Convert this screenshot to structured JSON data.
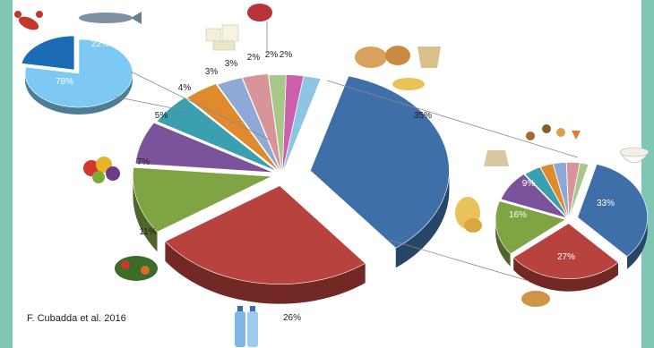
{
  "source_text": "F. Cubadda et al. 2016",
  "colors": {
    "frame": "#7fc6b5",
    "cereals": "#3f6fa8",
    "water": "#b8423d",
    "vegetables": "#7ea443",
    "fruit": "#7b539a",
    "teal": "#3b9fb0",
    "orange": "#e08a2e",
    "lightblue": "#8ea9d6",
    "pink": "#d99499",
    "lightgreen": "#a6c98a",
    "magenta": "#cc5fae",
    "skyblue": "#8cc6e4",
    "inset_light": "#7dc9f3",
    "inset_dark": "#1b6bb5"
  },
  "chart_data": [
    {
      "type": "pie",
      "variant": "exploded-3d",
      "slices": [
        {
          "label": "35%",
          "value": 35,
          "color": "cereals",
          "icon": "bread-and-pasta-icon"
        },
        {
          "label": "26%",
          "value": 26,
          "color": "water",
          "icon": "water-bottles-icon"
        },
        {
          "label": "11%",
          "value": 11,
          "color": "vegetables",
          "icon": "vegetables-icon"
        },
        {
          "label": "7%",
          "value": 7,
          "color": "fruit",
          "icon": "fruit-icon"
        },
        {
          "label": "5%",
          "value": 5,
          "color": "teal",
          "icon": ""
        },
        {
          "label": "4%",
          "value": 4,
          "color": "orange",
          "icon": ""
        },
        {
          "label": "3%",
          "value": 3,
          "color": "lightblue",
          "icon": ""
        },
        {
          "label": "3%",
          "value": 3,
          "color": "pink",
          "icon": "dairy-icon"
        },
        {
          "label": "2%",
          "value": 2,
          "color": "lightgreen",
          "icon": ""
        },
        {
          "label": "2%",
          "value": 2,
          "color": "magenta",
          "icon": "meat-icon"
        },
        {
          "label": "2%",
          "value": 2,
          "color": "skyblue",
          "icon": ""
        }
      ]
    },
    {
      "type": "pie",
      "variant": "inset-seafood",
      "slices": [
        {
          "label": "78%",
          "value": 78,
          "color": "inset_light",
          "icon": "lobster-icon"
        },
        {
          "label": "22%",
          "value": 22,
          "color": "inset_dark",
          "icon": "fish-icon"
        }
      ]
    },
    {
      "type": "pie",
      "variant": "inset-cereals",
      "slices": [
        {
          "label": "33%",
          "value": 33,
          "color": "cereals",
          "icon": "rice-bowl-icon"
        },
        {
          "label": "27%",
          "value": 27,
          "color": "water",
          "icon": "bread-icon"
        },
        {
          "label": "16%",
          "value": 16,
          "color": "vegetables",
          "icon": "pasta-icon"
        },
        {
          "label": "9%",
          "value": 9,
          "color": "fruit",
          "icon": "flour-icon"
        },
        {
          "label": "",
          "value": 4,
          "color": "teal",
          "icon": ""
        },
        {
          "label": "",
          "value": 3,
          "color": "orange",
          "icon": ""
        },
        {
          "label": "",
          "value": 3,
          "color": "lightblue",
          "icon": ""
        },
        {
          "label": "",
          "value": 3,
          "color": "pink",
          "icon": ""
        },
        {
          "label": "",
          "value": 2,
          "color": "lightgreen",
          "icon": ""
        }
      ]
    }
  ]
}
